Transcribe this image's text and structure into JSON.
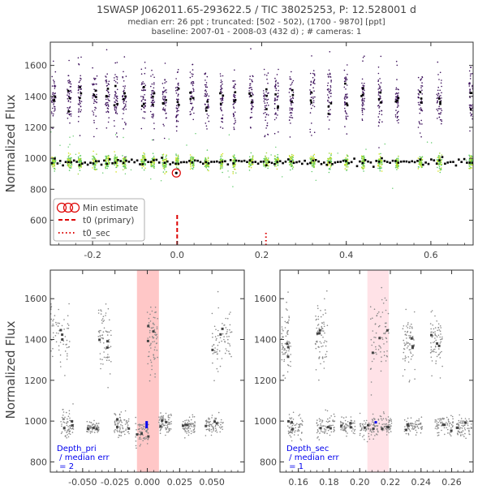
{
  "header": {
    "title": "1SWASP J062011.65-293622.5 / TIC 38025253, P: 12.528001 d",
    "line2": "median err: 26 ppt ; truncated: [502 - 502), (1700 - 9870] [ppt]",
    "line3": "baseline: 2007-01 - 2008-03 (432 d)  ;  # cameras: 1"
  },
  "colors": {
    "purple": "#3b0f5a",
    "green": "#5ac864",
    "yellow": "#d2e21b",
    "red": "#dd0000",
    "blue": "#0000ee",
    "grey": "#888888",
    "binned": "#000000"
  },
  "chart_data": [
    {
      "type": "scatter",
      "panel": "top",
      "ylabel": "Normalized Flux",
      "xlim": [
        -0.3,
        0.7
      ],
      "ylim": [
        440,
        1750
      ],
      "xticks": [
        "-0.2",
        "0.0",
        "0.2",
        "0.4",
        "0.6"
      ],
      "xtick_values": [
        -0.2,
        0.0,
        0.2,
        0.4,
        0.6
      ],
      "yticks": [
        "600",
        "800",
        "1000",
        "1200",
        "1400",
        "1600"
      ],
      "ytick_values": [
        600,
        800,
        1000,
        1200,
        1400,
        1600
      ],
      "upper_band_center": 1390,
      "lower_band_center": 975,
      "min_estimate": {
        "x": -0.002,
        "y": 905
      },
      "t0_primary": 0.0,
      "t0_sec": 0.21,
      "legend": {
        "placement": "lower-left",
        "entries": [
          "Min estimate",
          "t0 (primary)",
          "t0_sec"
        ]
      }
    },
    {
      "type": "scatter",
      "panel": "bottom-left",
      "ylabel": "Normalized Flux",
      "xlim": [
        -0.075,
        0.075
      ],
      "ylim": [
        750,
        1740
      ],
      "xticks": [
        "-0.050",
        "-0.025",
        "0.000",
        "0.025",
        "0.050"
      ],
      "xtick_values": [
        -0.05,
        -0.025,
        0.0,
        0.025,
        0.05
      ],
      "yticks": [
        "800",
        "1000",
        "1200",
        "1400",
        "1600"
      ],
      "ytick_values": [
        800,
        1000,
        1200,
        1400,
        1600
      ],
      "shade": [
        -0.008,
        0.009
      ],
      "depth_bar": {
        "x": -0.0005,
        "y0": 965,
        "y1": 1000
      },
      "label": [
        "Depth_pri",
        " / median err",
        " = 2"
      ]
    },
    {
      "type": "scatter",
      "panel": "bottom-right",
      "xlim": [
        0.148,
        0.274
      ],
      "ylim": [
        750,
        1740
      ],
      "xticks": [
        "0.16",
        "0.18",
        "0.20",
        "0.22",
        "0.24",
        "0.26"
      ],
      "xtick_values": [
        0.16,
        0.18,
        0.2,
        0.22,
        0.24,
        0.26
      ],
      "yticks": [
        "800",
        "1000",
        "1200",
        "1400",
        "1600"
      ],
      "ytick_values": [
        800,
        1000,
        1200,
        1400,
        1600
      ],
      "shade": [
        0.205,
        0.219
      ],
      "depth_bar": {
        "x": 0.2105,
        "y0": 990,
        "y1": 1000
      },
      "label": [
        "Depth_sec",
        " / median err",
        " = 1"
      ]
    }
  ]
}
